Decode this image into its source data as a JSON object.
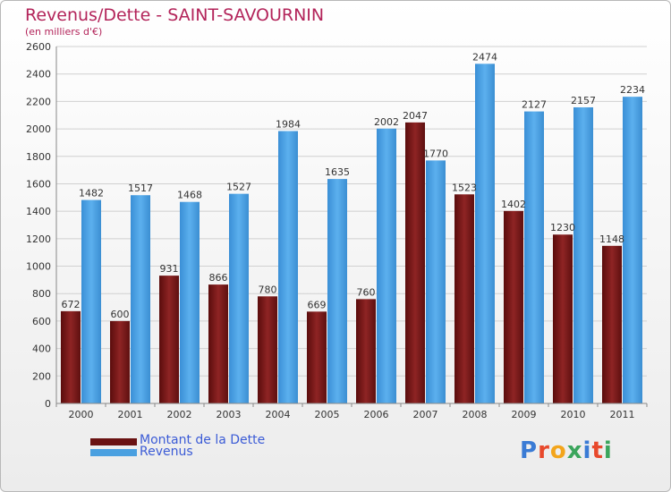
{
  "header": {
    "title": "Revenus/Dette - SAINT-SAVOURNIN",
    "subtitle": "(en milliers d'€)"
  },
  "legend": {
    "dette_label": "Montant de la Dette",
    "revenus_label": "Revenus"
  },
  "logo": {
    "text": "Proxiti",
    "letter_colors": [
      "#3a7bd5",
      "#e8492c",
      "#f3a51c",
      "#3ba55c",
      "#3a7bd5",
      "#e8492c",
      "#3ba55c"
    ]
  },
  "colors": {
    "dette": "#7a1818",
    "revenus": "#4aa0e0",
    "title": "#b3245a",
    "legend_text": "#3b5bd6"
  },
  "chart_data": {
    "type": "bar",
    "title": "Revenus/Dette - SAINT-SAVOURNIN",
    "subtitle": "(en milliers d'€)",
    "categories": [
      "2000",
      "2001",
      "2002",
      "2003",
      "2004",
      "2005",
      "2006",
      "2007",
      "2008",
      "2009",
      "2010",
      "2011"
    ],
    "series": [
      {
        "name": "Montant de la Dette",
        "values": [
          672,
          600,
          931,
          866,
          780,
          669,
          760,
          2047,
          1523,
          1402,
          1230,
          1148
        ]
      },
      {
        "name": "Revenus",
        "values": [
          1482,
          1517,
          1468,
          1527,
          1984,
          1635,
          2002,
          1770,
          2474,
          2127,
          2157,
          2234
        ]
      }
    ],
    "yticks": [
      "0",
      "200",
      "400",
      "600",
      "800",
      "1000",
      "1200",
      "1400",
      "1600",
      "1800",
      "2000",
      "2200",
      "2400",
      "2600"
    ],
    "ylim": [
      0,
      2600
    ],
    "grid": true,
    "legend_position": "bottom-left"
  }
}
